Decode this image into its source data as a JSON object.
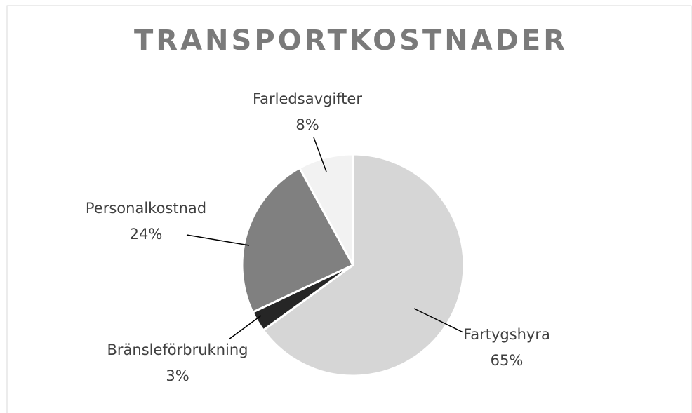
{
  "chart_data": {
    "type": "pie",
    "title": "TRANSPORTKOSTNADER",
    "categories": [
      "Fartygshyra",
      "Bränsleförbrukning",
      "Personalkostnad",
      "Farledsavgifter"
    ],
    "values": [
      65,
      3,
      24,
      8
    ],
    "value_labels": [
      "65%",
      "3%",
      "24%",
      "8%"
    ],
    "colors": [
      "#d6d6d6",
      "#262626",
      "#808080",
      "#f2f2f2"
    ]
  }
}
